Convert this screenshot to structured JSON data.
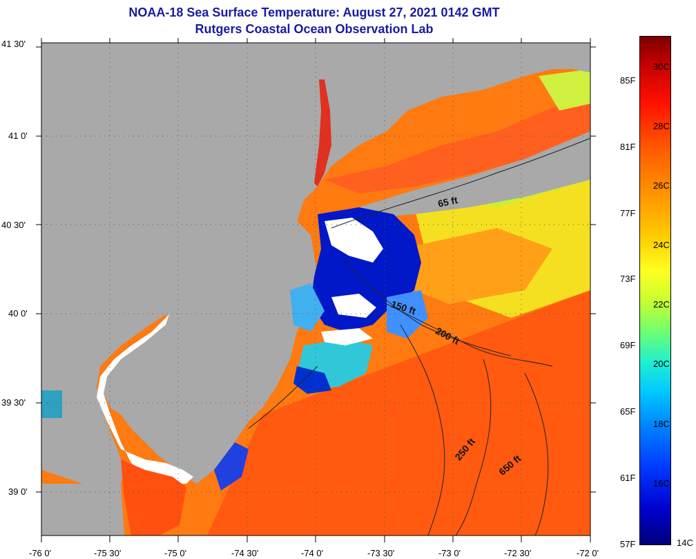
{
  "title_line1": "NOAA-18 Sea Surface Temperature:  August 27, 2021 0142 GMT",
  "title_line2": "Rutgers Coastal Ocean Observation Lab",
  "lat_labels": [
    "41 30'",
    "41 0'",
    "40 30'",
    "40 0'",
    "39 30'",
    "39 0'"
  ],
  "lon_labels": [
    "-76 0'",
    "-75 30'",
    "-75 0'",
    "-74 30'",
    "-74 0'",
    "-73 30'",
    "-73 0'",
    "-72 30'",
    "-72 0'"
  ],
  "colorbar": {
    "fahrenheit": [
      "85F",
      "81F",
      "77F",
      "73F",
      "69F",
      "65F",
      "61F",
      "57F"
    ],
    "celsius": [
      "30C",
      "28C",
      "26C",
      "24C",
      "22C",
      "20C",
      "18C",
      "16C",
      "14C"
    ]
  },
  "contours": [
    "65 ft",
    "150 ft",
    "200 ft",
    "250 ft",
    "650 ft"
  ],
  "colors": {
    "land": "#a9a9a9",
    "title": "#1a1aa0",
    "warm_ocean": "#ff6a10",
    "cool_upwelling": "#0018c8",
    "cloud_mask": "#ffffff"
  }
}
